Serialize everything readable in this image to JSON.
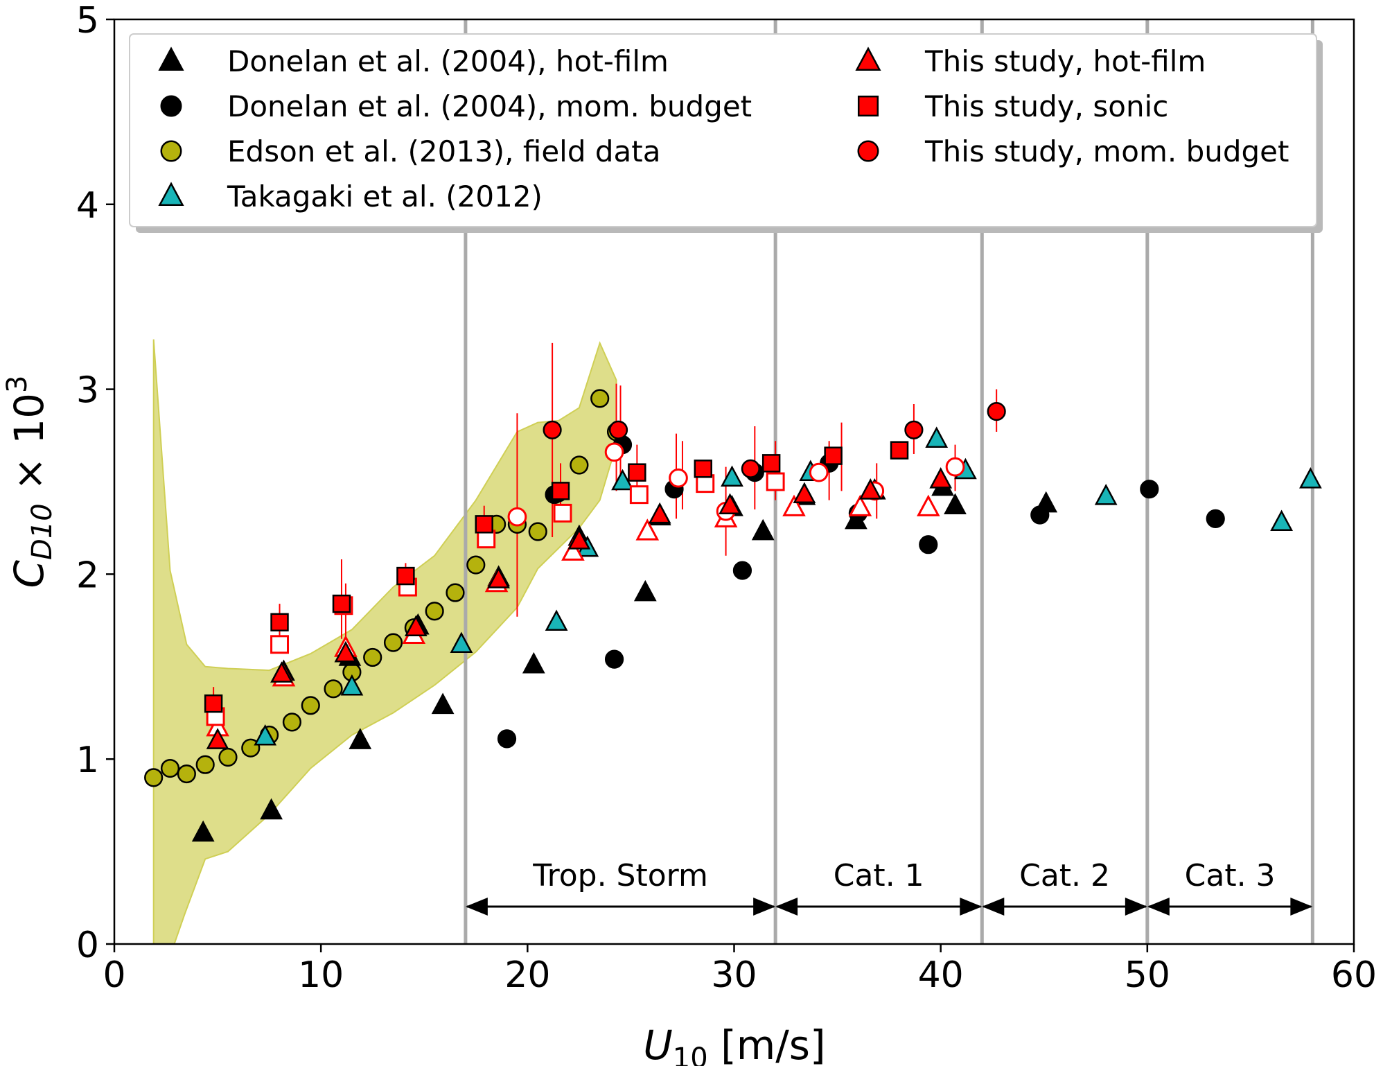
{
  "chart_data": {
    "type": "scatter",
    "xlabel": "U",
    "xlabel_sub": "10",
    "xlabel_unit": " [m/s]",
    "ylabel": "C",
    "ylabel_sub": "D10",
    "ylabel_times": " × 10",
    "ylabel_sup": "3",
    "xlim": [
      0,
      60
    ],
    "ylim": [
      0,
      5
    ],
    "xticks": [
      0,
      10,
      20,
      30,
      40,
      50,
      60
    ],
    "yticks": [
      0,
      1,
      2,
      3,
      4,
      5
    ],
    "legend_position": "top",
    "colors": {
      "black": "#000000",
      "olive": "#b5b20d",
      "olive_band": "#dede8a",
      "cyan": "#19b5b8",
      "red": "#ff0000",
      "category_line": "#aaaaaa"
    },
    "category_lines": [
      17,
      32,
      42,
      50,
      58
    ],
    "categories": [
      {
        "label": "Trop. Storm",
        "from": 17,
        "to": 32
      },
      {
        "label": "Cat. 1",
        "from": 32,
        "to": 42
      },
      {
        "label": "Cat. 2",
        "from": 42,
        "to": 50
      },
      {
        "label": "Cat. 3",
        "from": 50,
        "to": 58
      }
    ],
    "edson_band": {
      "upper": [
        [
          1.9,
          3.27
        ],
        [
          2.7,
          2.02
        ],
        [
          3.5,
          1.62
        ],
        [
          4.4,
          1.5
        ],
        [
          5.5,
          1.49
        ],
        [
          7.5,
          1.48
        ],
        [
          9.5,
          1.57
        ],
        [
          11.5,
          1.7
        ],
        [
          13.5,
          1.93
        ],
        [
          15.5,
          2.1
        ],
        [
          17.5,
          2.4
        ],
        [
          19.5,
          2.77
        ],
        [
          20.5,
          2.82
        ],
        [
          21.5,
          2.83
        ],
        [
          22.5,
          2.9
        ],
        [
          23.5,
          3.25
        ],
        [
          24.3,
          3.05
        ]
      ],
      "lower": [
        [
          1.9,
          0
        ],
        [
          2.9,
          0
        ],
        [
          3.4,
          0.16
        ],
        [
          4.4,
          0.46
        ],
        [
          5.5,
          0.5
        ],
        [
          7.5,
          0.7
        ],
        [
          9.5,
          0.95
        ],
        [
          11.5,
          1.13
        ],
        [
          13.5,
          1.25
        ],
        [
          15.5,
          1.4
        ],
        [
          17.5,
          1.58
        ],
        [
          19.5,
          1.82
        ],
        [
          20.5,
          2.03
        ],
        [
          21.5,
          2.14
        ],
        [
          22.5,
          2.25
        ],
        [
          23.5,
          2.4
        ],
        [
          24.3,
          2.7
        ]
      ]
    },
    "series": [
      {
        "name": "Donelan et al. (2004), hot-film",
        "marker": "triangle",
        "fill": "#000000",
        "edge": "#000000",
        "points": [
          [
            4.3,
            0.6
          ],
          [
            7.6,
            0.72
          ],
          [
            8.2,
            1.47
          ],
          [
            11.4,
            1.55
          ],
          [
            11.9,
            1.1
          ],
          [
            14.7,
            1.72
          ],
          [
            15.9,
            1.29
          ],
          [
            18.6,
            1.98
          ],
          [
            20.3,
            1.51
          ],
          [
            22.5,
            2.2
          ],
          [
            25.7,
            1.9
          ],
          [
            26.4,
            2.31
          ],
          [
            29.9,
            2.36
          ],
          [
            31.4,
            2.23
          ],
          [
            33.4,
            2.42
          ],
          [
            35.9,
            2.29
          ],
          [
            36.8,
            2.45
          ],
          [
            40.1,
            2.47
          ],
          [
            40.7,
            2.37
          ],
          [
            45.1,
            2.38
          ]
        ]
      },
      {
        "name": "Donelan et al. (2004), mom. budget",
        "marker": "circle",
        "fill": "#000000",
        "edge": "#000000",
        "points": [
          [
            19.0,
            1.11
          ],
          [
            21.3,
            2.43
          ],
          [
            24.2,
            1.54
          ],
          [
            24.6,
            2.7
          ],
          [
            27.1,
            2.46
          ],
          [
            30.4,
            2.02
          ],
          [
            31.0,
            2.55
          ],
          [
            34.6,
            2.6
          ],
          [
            36.0,
            2.33
          ],
          [
            39.4,
            2.16
          ],
          [
            44.8,
            2.32
          ],
          [
            50.1,
            2.46
          ],
          [
            53.3,
            2.3
          ]
        ]
      },
      {
        "name": "Edson et al. (2013), field data",
        "marker": "circle",
        "fill": "#b5b20d",
        "edge": "#000000",
        "points": [
          [
            1.9,
            0.9
          ],
          [
            2.7,
            0.95
          ],
          [
            3.5,
            0.92
          ],
          [
            4.4,
            0.97
          ],
          [
            5.5,
            1.01
          ],
          [
            6.6,
            1.06
          ],
          [
            7.5,
            1.13
          ],
          [
            8.6,
            1.2
          ],
          [
            9.5,
            1.29
          ],
          [
            10.6,
            1.38
          ],
          [
            11.5,
            1.47
          ],
          [
            12.5,
            1.55
          ],
          [
            13.5,
            1.63
          ],
          [
            14.5,
            1.71
          ],
          [
            15.5,
            1.8
          ],
          [
            16.5,
            1.9
          ],
          [
            17.5,
            2.05
          ],
          [
            18.5,
            2.27
          ],
          [
            19.5,
            2.27
          ],
          [
            20.5,
            2.23
          ],
          [
            21.5,
            2.44
          ],
          [
            22.5,
            2.59
          ],
          [
            23.5,
            2.95
          ],
          [
            24.3,
            2.77
          ]
        ]
      },
      {
        "name": "Takagaki et al. (2012)",
        "marker": "triangle",
        "fill": "#19b5b8",
        "edge": "#000000",
        "points": [
          [
            7.3,
            1.12
          ],
          [
            11.5,
            1.39
          ],
          [
            16.8,
            1.62
          ],
          [
            21.4,
            1.74
          ],
          [
            22.9,
            2.14
          ],
          [
            24.6,
            2.5
          ],
          [
            29.9,
            2.52
          ],
          [
            33.7,
            2.55
          ],
          [
            39.8,
            2.73
          ],
          [
            41.2,
            2.56
          ],
          [
            48.0,
            2.42
          ],
          [
            56.5,
            2.28
          ],
          [
            57.9,
            2.51
          ]
        ]
      },
      {
        "name": "This study, hot-film",
        "marker": "triangle",
        "fill": "#ff0000",
        "edge": "#000000",
        "points": [
          [
            5.0,
            1.1
          ],
          [
            8.1,
            1.46
          ],
          [
            11.2,
            1.57
          ],
          [
            14.6,
            1.71
          ],
          [
            18.6,
            1.97
          ],
          [
            22.5,
            2.18
          ],
          [
            26.4,
            2.32
          ],
          [
            29.8,
            2.37
          ],
          [
            33.4,
            2.43
          ],
          [
            36.6,
            2.45
          ],
          [
            40.0,
            2.51
          ]
        ]
      },
      {
        "name": "This study, sonic",
        "marker": "square",
        "fill": "#ff0000",
        "edge": "#000000",
        "points": [
          [
            4.8,
            1.3
          ],
          [
            8.0,
            1.74
          ],
          [
            11.0,
            1.84
          ],
          [
            14.1,
            1.99
          ],
          [
            17.9,
            2.27
          ],
          [
            21.6,
            2.45
          ],
          [
            25.3,
            2.55
          ],
          [
            28.5,
            2.57
          ],
          [
            31.8,
            2.6
          ],
          [
            34.8,
            2.64
          ],
          [
            38.0,
            2.67
          ]
        ]
      },
      {
        "name": "This study, mom. budget",
        "marker": "circle",
        "fill": "#ff0000",
        "edge": "#000000",
        "points": [
          [
            21.2,
            2.78
          ],
          [
            24.4,
            2.78
          ],
          [
            30.8,
            2.57
          ],
          [
            38.7,
            2.78
          ],
          [
            42.7,
            2.88
          ]
        ]
      }
    ],
    "unnamed_series": [
      {
        "marker": "triangle",
        "fill": "#ffffff",
        "edge": "#ff0000",
        "points": [
          [
            5.0,
            1.17
          ],
          [
            8.2,
            1.44
          ],
          [
            11.2,
            1.6
          ],
          [
            14.5,
            1.67
          ],
          [
            18.5,
            1.95
          ],
          [
            22.2,
            2.12
          ],
          [
            25.8,
            2.23
          ],
          [
            29.6,
            2.3
          ],
          [
            32.9,
            2.36
          ],
          [
            36.1,
            2.36
          ],
          [
            39.4,
            2.36
          ]
        ]
      },
      {
        "marker": "square",
        "fill": "#ffffff",
        "edge": "#ff0000",
        "points": [
          [
            4.9,
            1.23
          ],
          [
            8.0,
            1.62
          ],
          [
            11.1,
            1.83
          ],
          [
            14.2,
            1.93
          ],
          [
            18.0,
            2.19
          ],
          [
            21.7,
            2.33
          ],
          [
            25.4,
            2.43
          ],
          [
            28.6,
            2.49
          ],
          [
            32.0,
            2.5
          ]
        ]
      },
      {
        "marker": "circle",
        "fill": "#ffffff",
        "edge": "#ff0000",
        "points": [
          [
            19.5,
            2.31
          ],
          [
            24.2,
            2.66
          ],
          [
            27.3,
            2.52
          ],
          [
            29.6,
            2.34
          ],
          [
            34.1,
            2.55
          ],
          [
            36.8,
            2.45
          ],
          [
            40.7,
            2.58
          ]
        ]
      }
    ],
    "error_bars": [
      {
        "x": 4.8,
        "y0": 1.2,
        "y1": 1.39
      },
      {
        "x": 8.0,
        "y0": 1.58,
        "y1": 1.84
      },
      {
        "x": 11.0,
        "y0": 1.65,
        "y1": 2.08
      },
      {
        "x": 11.2,
        "y0": 1.5,
        "y1": 1.95
      },
      {
        "x": 14.1,
        "y0": 1.9,
        "y1": 2.06
      },
      {
        "x": 17.9,
        "y0": 2.15,
        "y1": 2.37
      },
      {
        "x": 19.5,
        "y0": 1.77,
        "y1": 2.87
      },
      {
        "x": 21.2,
        "y0": 2.2,
        "y1": 3.25
      },
      {
        "x": 21.6,
        "y0": 2.3,
        "y1": 2.6
      },
      {
        "x": 24.3,
        "y0": 2.45,
        "y1": 3.03
      },
      {
        "x": 24.5,
        "y0": 2.5,
        "y1": 3.02
      },
      {
        "x": 25.3,
        "y0": 2.4,
        "y1": 2.7
      },
      {
        "x": 27.2,
        "y0": 2.3,
        "y1": 2.76
      },
      {
        "x": 27.5,
        "y0": 2.35,
        "y1": 2.72
      },
      {
        "x": 29.6,
        "y0": 2.1,
        "y1": 2.58
      },
      {
        "x": 31.0,
        "y0": 2.35,
        "y1": 2.8
      },
      {
        "x": 32.0,
        "y0": 2.4,
        "y1": 2.72
      },
      {
        "x": 34.6,
        "y0": 2.4,
        "y1": 2.72
      },
      {
        "x": 35.2,
        "y0": 2.45,
        "y1": 2.82
      },
      {
        "x": 36.9,
        "y0": 2.3,
        "y1": 2.6
      },
      {
        "x": 38.7,
        "y0": 2.65,
        "y1": 2.92
      },
      {
        "x": 40.7,
        "y0": 2.45,
        "y1": 2.7
      },
      {
        "x": 42.7,
        "y0": 2.77,
        "y1": 3.0
      }
    ]
  }
}
